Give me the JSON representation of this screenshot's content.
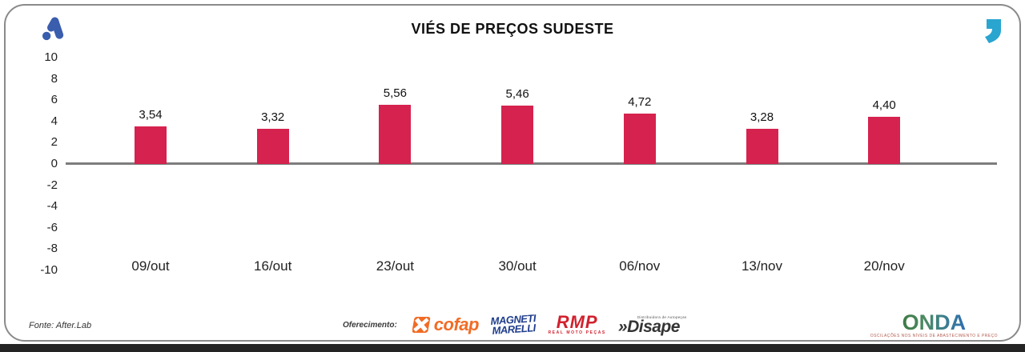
{
  "title": "VIÉS DE PREÇOS SUDESTE",
  "chart_data": {
    "type": "bar",
    "title": "VIÉS DE PREÇOS SUDESTE",
    "categories": [
      "09/out",
      "16/out",
      "23/out",
      "30/out",
      "06/nov",
      "13/nov",
      "20/nov"
    ],
    "values": [
      3.54,
      3.32,
      5.56,
      5.46,
      4.72,
      3.28,
      4.4
    ],
    "value_labels": [
      "3,54",
      "3,32",
      "5,56",
      "5,46",
      "4,72",
      "3,28",
      "4,40"
    ],
    "ylim": [
      -10,
      10
    ],
    "yticks": [
      10,
      8,
      6,
      4,
      2,
      0,
      -2,
      -4,
      -6,
      -8,
      -10
    ],
    "xlabel": "",
    "ylabel": "",
    "grid": false,
    "legend": false,
    "bar_color": "#D6224E",
    "zero_line_color": "#7D7D7D"
  },
  "branding": {
    "top_left_logo": "afterlab-mark",
    "top_left_color": "#3A5DAE",
    "top_right_quote_color": "#29A5D0"
  },
  "footer": {
    "source": "Fonte: After.Lab",
    "sponsor_label": "Oferecimento:",
    "sponsors": {
      "cofap": {
        "name": "cofap",
        "color": "#F26B24"
      },
      "magneti": {
        "line1": "MAGNETI",
        "line2": "MARELLI",
        "color": "#1F3D8C"
      },
      "rmp": {
        "name": "RMP",
        "caption": "REAL MOTO PEÇAS",
        "color": "#D1212E"
      },
      "disape": {
        "name": "Disape",
        "prefix": "»",
        "caption": "Distribuidora de Autopeças",
        "color": "#343434"
      }
    },
    "onda": {
      "name": "ONDA",
      "tagline": "OSCILAÇÕES NOS NÍVEIS DE ABASTECIMENTO E PREÇO"
    }
  }
}
